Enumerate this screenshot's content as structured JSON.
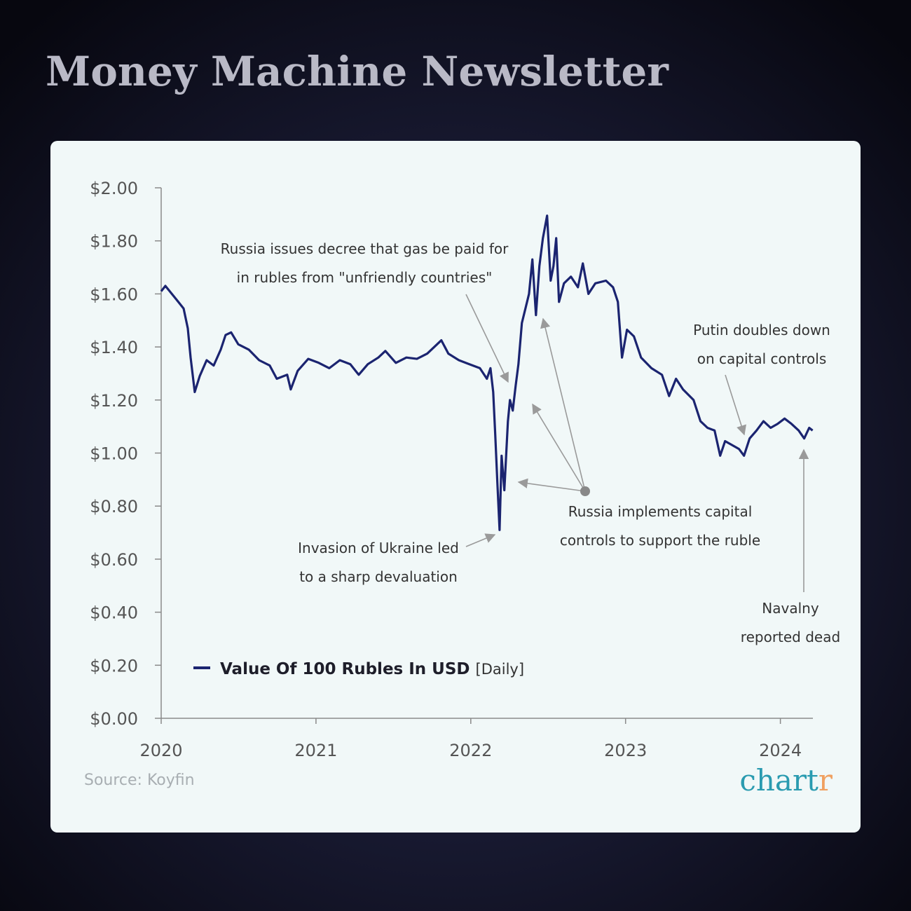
{
  "header": {
    "title": "Money Machine Newsletter"
  },
  "chart_data": {
    "type": "line",
    "x": [
      2020.0,
      2020.027,
      2020.09,
      2020.145,
      2020.172,
      2020.19,
      2020.217,
      2020.249,
      2020.294,
      2020.339,
      2020.385,
      2020.416,
      2020.452,
      2020.498,
      2020.566,
      2020.633,
      2020.701,
      2020.747,
      2020.814,
      2020.837,
      2020.882,
      2020.95,
      2021.018,
      2021.086,
      2021.154,
      2021.222,
      2021.276,
      2021.335,
      2021.403,
      2021.448,
      2021.516,
      2021.584,
      2021.652,
      2021.719,
      2021.81,
      2021.855,
      2021.923,
      2021.991,
      2022.059,
      2022.104,
      2022.127,
      2022.145,
      2022.158,
      2022.172,
      2022.186,
      2022.199,
      2022.217,
      2022.24,
      2022.253,
      2022.271,
      2022.29,
      2022.308,
      2022.33,
      2022.353,
      2022.376,
      2022.398,
      2022.421,
      2022.443,
      2022.466,
      2022.493,
      2022.516,
      2022.534,
      2022.552,
      2022.57,
      2022.602,
      2022.647,
      2022.692,
      2022.724,
      2022.76,
      2022.805,
      2022.873,
      2022.919,
      2022.95,
      2022.977,
      2023.009,
      2023.054,
      2023.1,
      2023.167,
      2023.235,
      2023.281,
      2023.326,
      2023.371,
      2023.439,
      2023.484,
      2023.529,
      2023.575,
      2023.611,
      2023.643,
      2023.688,
      2023.733,
      2023.765,
      2023.801,
      2023.846,
      2023.891,
      2023.937,
      2023.982,
      2024.027,
      2024.072,
      2024.118,
      2024.154,
      2024.186,
      2024.208
    ],
    "series": [
      {
        "name": "Value Of 100 Rubles In USD",
        "color": "#1b2470",
        "values": [
          1.61,
          1.63,
          1.585,
          1.545,
          1.47,
          1.36,
          1.23,
          1.29,
          1.35,
          1.33,
          1.39,
          1.445,
          1.455,
          1.41,
          1.39,
          1.35,
          1.33,
          1.28,
          1.295,
          1.24,
          1.31,
          1.355,
          1.34,
          1.32,
          1.35,
          1.335,
          1.295,
          1.335,
          1.36,
          1.385,
          1.34,
          1.36,
          1.355,
          1.375,
          1.425,
          1.375,
          1.35,
          1.335,
          1.32,
          1.28,
          1.32,
          1.23,
          1.07,
          0.885,
          0.71,
          0.99,
          0.86,
          1.12,
          1.2,
          1.16,
          1.255,
          1.335,
          1.49,
          1.545,
          1.6,
          1.73,
          1.52,
          1.705,
          1.81,
          1.895,
          1.65,
          1.705,
          1.81,
          1.57,
          1.64,
          1.665,
          1.625,
          1.715,
          1.6,
          1.64,
          1.65,
          1.625,
          1.57,
          1.36,
          1.465,
          1.44,
          1.36,
          1.32,
          1.295,
          1.215,
          1.28,
          1.24,
          1.2,
          1.12,
          1.095,
          1.085,
          0.99,
          1.045,
          1.03,
          1.015,
          0.99,
          1.055,
          1.085,
          1.12,
          1.095,
          1.11,
          1.13,
          1.11,
          1.085,
          1.055,
          1.095,
          1.085
        ]
      }
    ],
    "frequency": "[Daily]",
    "xlim": [
      2020,
      2024.21
    ],
    "xticks": [
      2020,
      2021,
      2022,
      2023,
      2024
    ],
    "ylim": [
      0,
      2
    ],
    "yticks": [
      {
        "value": 0,
        "label": "$0.00"
      },
      {
        "value": 0.2,
        "label": "$0.20"
      },
      {
        "value": 0.4,
        "label": "$0.40"
      },
      {
        "value": 0.6,
        "label": "$0.60"
      },
      {
        "value": 0.8,
        "label": "$0.80"
      },
      {
        "value": 1,
        "label": "$1.00"
      },
      {
        "value": 1.2,
        "label": "$1.20"
      },
      {
        "value": 1.4,
        "label": "$1.40"
      },
      {
        "value": 1.6,
        "label": "$1.60"
      },
      {
        "value": 1.8,
        "label": "$1.80"
      },
      {
        "value": 2,
        "label": "$2.00"
      }
    ],
    "grid": false,
    "annotations": [
      {
        "lines": [
          "Russia issues decree that gas be paid for",
          "in rubles from \"unfriendly countries\""
        ]
      },
      {
        "lines": [
          "Putin doubles down",
          "on capital controls"
        ]
      },
      {
        "lines": [
          "Russia implements capital",
          "controls to support the ruble"
        ]
      },
      {
        "lines": [
          "Invasion of Ukraine led",
          "to a sharp devaluation"
        ]
      },
      {
        "lines": [
          "Navalny",
          "reported dead"
        ]
      }
    ],
    "source": "Source: Koyfin",
    "logo": {
      "main": "chart",
      "accent": "r"
    }
  }
}
